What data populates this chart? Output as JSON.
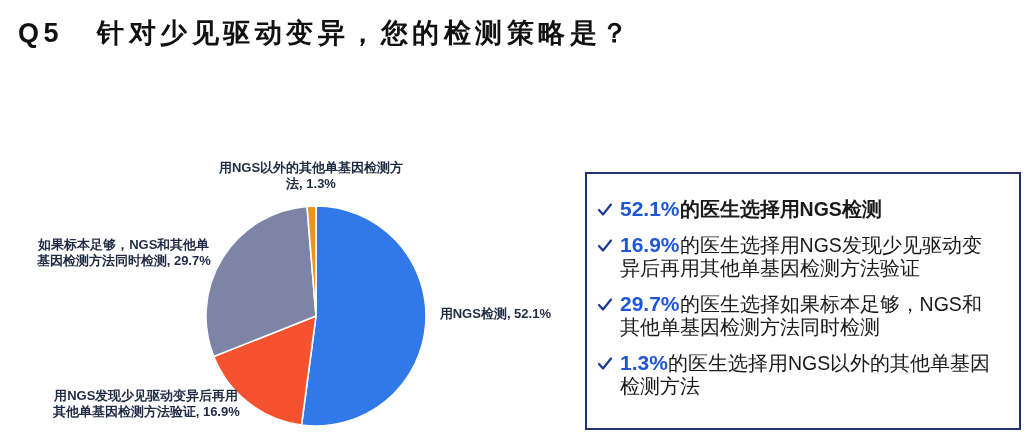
{
  "chart_data": [
    {
      "type": "pie",
      "title": "Q5 针对少见驱动变异，您的检测策略是？",
      "categories": [
        "用NGS检测",
        "用NGS发现少见驱动变异后再用其他单基因检测方法验证",
        "如果标本足够，NGS和其他单基因检测方法同时检测",
        "用NGS以外的其他单基因检测方法"
      ],
      "values": [
        52.1,
        16.9,
        29.7,
        1.3
      ],
      "colors": [
        "#3179e8",
        "#f5532f",
        "#7d84a6",
        "#e8961f"
      ],
      "value_labels": [
        "52.1%",
        "16.9%",
        "29.7%",
        "1.3%"
      ]
    },
    {
      "type": "other",
      "annotations": [
        "52.1%的医生选择用NGS检测",
        "16.9%的医生选择用NGS发现少见驱动变异后再用其他单基因检测方法验证",
        "29.7%的医生选择如果标本足够，NGS和其他单基因检测方法同时检测",
        "1.3%的医生选择用NGS以外的其他单基因检测方法"
      ]
    }
  ]
}
